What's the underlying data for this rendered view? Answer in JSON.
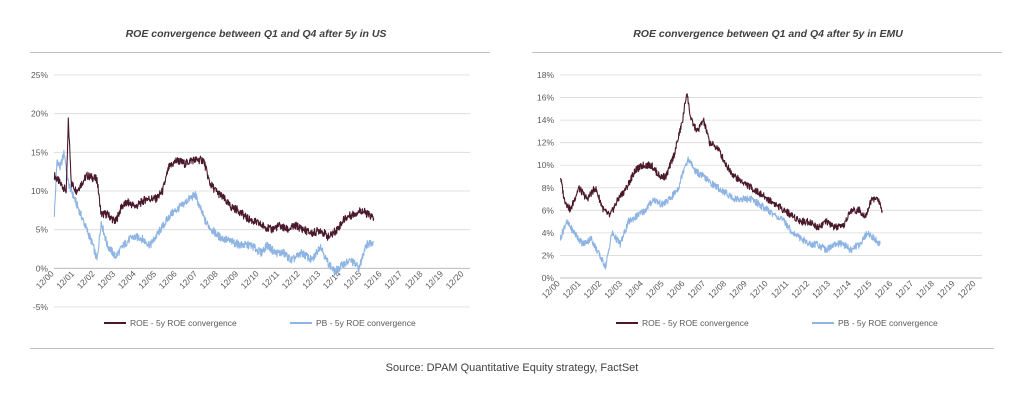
{
  "source": "Source: DPAM Quantitative Equity strategy, FactSet",
  "colors": {
    "roe": "#4a1a2c",
    "pb": "#8eb4e3",
    "grid": "#d9d9d9",
    "axis": "#bfbfbf"
  },
  "chart_data": [
    {
      "type": "line",
      "title": "ROE convergence between Q1 and Q4 after 5y in US",
      "xlabel": "",
      "ylabel": "",
      "ylim": [
        -5,
        25
      ],
      "y_ticks": [
        "-5%",
        "0%",
        "5%",
        "10%",
        "15%",
        "20%",
        "25%"
      ],
      "y_tick_values": [
        -5,
        0,
        5,
        10,
        15,
        20,
        25
      ],
      "x_range": [
        2000.9,
        2021.2
      ],
      "x_ticks": [
        "12/00",
        "12/01",
        "12/02",
        "12/03",
        "12/04",
        "12/05",
        "12/06",
        "12/07",
        "12/08",
        "12/09",
        "12/10",
        "12/11",
        "12/12",
        "12/13",
        "12/14",
        "12/15",
        "12/16",
        "12/17",
        "12/18",
        "12/19",
        "12/20"
      ],
      "grid": true,
      "legend": "bottom",
      "series": [
        {
          "name": "ROE - 5y ROE convergence",
          "x": [
            2000.92,
            2001.2,
            2001.5,
            2001.6,
            2001.75,
            2002.0,
            2002.5,
            2003.0,
            2003.2,
            2003.5,
            2003.9,
            2004.2,
            2004.5,
            2004.9,
            2005.4,
            2005.9,
            2006.2,
            2006.5,
            2006.9,
            2007.3,
            2007.6,
            2007.9,
            2008.2,
            2008.5,
            2008.8,
            2009.2,
            2009.5,
            2009.9,
            2010.3,
            2010.7,
            2011.1,
            2011.5,
            2011.9,
            2012.3,
            2012.7,
            2013.1,
            2013.5,
            2013.9,
            2014.3,
            2014.7,
            2015.1,
            2015.5,
            2015.9,
            2016.2,
            2016.5
          ],
          "values": [
            12,
            11,
            10,
            19,
            11,
            10,
            12,
            11.5,
            7,
            7,
            6,
            8,
            8.5,
            8,
            9,
            9,
            10,
            13,
            14,
            13.5,
            14,
            14,
            14,
            11,
            10,
            9,
            8,
            7.5,
            6.5,
            6,
            5.5,
            5,
            5.5,
            5,
            5.5,
            5,
            4.5,
            5,
            4,
            5,
            6.5,
            7,
            7.5,
            7,
            6.5
          ]
        },
        {
          "name": "PB - 5y ROE convergence",
          "x": [
            2000.92,
            2001.05,
            2001.2,
            2001.4,
            2001.6,
            2001.9,
            2002.2,
            2002.5,
            2002.8,
            2003.0,
            2003.2,
            2003.5,
            2003.9,
            2004.3,
            2004.7,
            2005.1,
            2005.6,
            2006.1,
            2006.6,
            2007.1,
            2007.5,
            2007.8,
            2008.0,
            2008.3,
            2008.6,
            2009.0,
            2009.5,
            2010.0,
            2010.5,
            2011.0,
            2011.3,
            2011.7,
            2012.1,
            2012.5,
            2013.0,
            2013.5,
            2013.9,
            2014.2,
            2014.6,
            2015.0,
            2015.4,
            2015.8,
            2016.1,
            2016.5
          ],
          "values": [
            7,
            14,
            13,
            15,
            11,
            9,
            7,
            5,
            3,
            1,
            6,
            3,
            1.5,
            3,
            4,
            4,
            3,
            5,
            7,
            8,
            9,
            9.5,
            8,
            6,
            5,
            4,
            3.5,
            3,
            3,
            2,
            3,
            2,
            2,
            1,
            2,
            1,
            3,
            1,
            -0.5,
            0.5,
            1,
            0,
            3,
            3.5
          ]
        }
      ]
    },
    {
      "type": "line",
      "title": "ROE convergence between Q1 and Q4 after 5y in EMU",
      "xlabel": "",
      "ylabel": "",
      "ylim": [
        0,
        18
      ],
      "y_ticks": [
        "0%",
        "2%",
        "4%",
        "6%",
        "8%",
        "10%",
        "12%",
        "14%",
        "16%",
        "18%"
      ],
      "y_tick_values": [
        0,
        2,
        4,
        6,
        8,
        10,
        12,
        14,
        16,
        18
      ],
      "x_range": [
        2000.9,
        2021.2
      ],
      "x_ticks": [
        "12/00",
        "12/01",
        "12/02",
        "12/03",
        "12/04",
        "12/05",
        "12/06",
        "12/07",
        "12/08",
        "12/09",
        "12/10",
        "12/11",
        "12/12",
        "12/13",
        "12/14",
        "12/15",
        "12/16",
        "12/17",
        "12/18",
        "12/19",
        "12/20"
      ],
      "grid": true,
      "legend": "bottom",
      "series": [
        {
          "name": "ROE - 5y ROE convergence",
          "x": [
            2000.92,
            2001.1,
            2001.4,
            2001.8,
            2002.2,
            2002.6,
            2003.0,
            2003.3,
            2003.7,
            2004.1,
            2004.5,
            2004.9,
            2005.3,
            2005.7,
            2006.0,
            2006.4,
            2006.8,
            2007.0,
            2007.2,
            2007.5,
            2007.8,
            2008.1,
            2008.5,
            2008.9,
            2009.3,
            2009.7,
            2010.1,
            2010.5,
            2010.9,
            2011.3,
            2011.7,
            2012.1,
            2012.5,
            2012.9,
            2013.3,
            2013.7,
            2014.1,
            2014.5,
            2014.9,
            2015.3,
            2015.6,
            2015.9,
            2016.2,
            2016.4
          ],
          "values": [
            9,
            7,
            6,
            8,
            7,
            8,
            6,
            5.5,
            7,
            8,
            9.5,
            10,
            10,
            9,
            9,
            11,
            14,
            16.5,
            14,
            13,
            14,
            12,
            11.5,
            10,
            9,
            8.5,
            8,
            7.5,
            7,
            6.5,
            6,
            5.5,
            5,
            5,
            4.5,
            5,
            4.5,
            4.5,
            6,
            6,
            5.5,
            7,
            7,
            6
          ]
        },
        {
          "name": "PB - 5y ROE convergence",
          "x": [
            2000.92,
            2001.2,
            2001.6,
            2002.0,
            2002.4,
            2002.8,
            2003.1,
            2003.4,
            2003.8,
            2004.2,
            2004.6,
            2005.0,
            2005.4,
            2005.8,
            2006.2,
            2006.6,
            2006.9,
            2007.1,
            2007.4,
            2007.8,
            2008.1,
            2008.5,
            2008.9,
            2009.3,
            2009.7,
            2010.1,
            2010.5,
            2010.9,
            2011.3,
            2011.7,
            2012.1,
            2012.5,
            2012.9,
            2013.3,
            2013.7,
            2014.1,
            2014.5,
            2014.9,
            2015.3,
            2015.7,
            2016.0,
            2016.3
          ],
          "values": [
            3.5,
            5,
            4,
            3,
            3.5,
            2,
            1,
            4,
            3,
            5,
            5.5,
            6,
            7,
            6.5,
            7,
            8,
            10,
            10.5,
            9.5,
            9,
            8.5,
            8,
            7.5,
            7,
            7,
            7,
            6.5,
            6,
            5.5,
            5,
            4,
            3.5,
            3,
            3,
            2.5,
            3,
            3,
            2.5,
            3,
            4,
            3.5,
            3
          ]
        }
      ]
    }
  ]
}
